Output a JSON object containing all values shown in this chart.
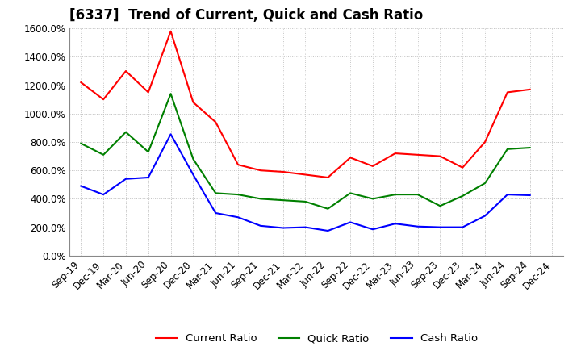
{
  "title": "[6337]  Trend of Current, Quick and Cash Ratio",
  "labels": [
    "Sep-19",
    "Dec-19",
    "Mar-20",
    "Jun-20",
    "Sep-20",
    "Dec-20",
    "Mar-21",
    "Jun-21",
    "Sep-21",
    "Dec-21",
    "Mar-22",
    "Jun-22",
    "Sep-22",
    "Dec-22",
    "Mar-23",
    "Jun-23",
    "Sep-23",
    "Dec-23",
    "Mar-24",
    "Jun-24",
    "Sep-24",
    "Dec-24"
  ],
  "current_ratio": [
    1220,
    1100,
    1300,
    1150,
    1580,
    1080,
    940,
    640,
    600,
    590,
    570,
    550,
    690,
    630,
    720,
    710,
    700,
    620,
    800,
    1150,
    1170,
    null
  ],
  "quick_ratio": [
    790,
    710,
    870,
    730,
    1140,
    680,
    440,
    430,
    400,
    390,
    380,
    330,
    440,
    400,
    430,
    430,
    350,
    420,
    510,
    750,
    760,
    null
  ],
  "cash_ratio": [
    490,
    430,
    540,
    550,
    855,
    570,
    300,
    270,
    210,
    195,
    200,
    175,
    235,
    185,
    225,
    205,
    200,
    200,
    280,
    430,
    425,
    null
  ],
  "current_color": "#ff0000",
  "quick_color": "#008000",
  "cash_color": "#0000ff",
  "ylim": [
    0,
    1600
  ],
  "yticks": [
    0,
    200,
    400,
    600,
    800,
    1000,
    1200,
    1400,
    1600
  ],
  "background_color": "#ffffff",
  "grid_color": "#bbbbbb",
  "line_width": 1.5,
  "title_fontsize": 12,
  "tick_fontsize": 8.5,
  "legend_fontsize": 9.5
}
